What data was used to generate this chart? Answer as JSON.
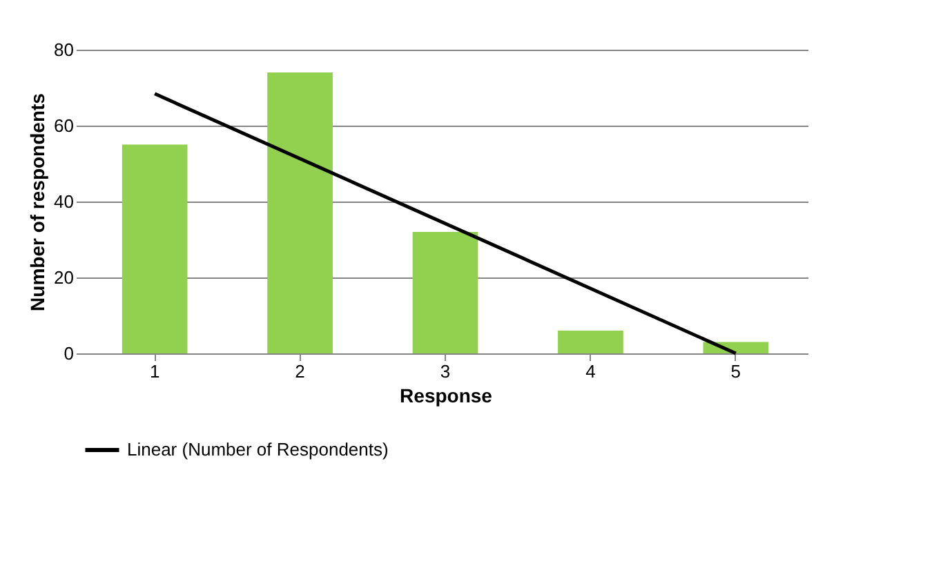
{
  "chart_data": {
    "type": "bar",
    "xlabel": "Response",
    "ylabel": "Number of respondents",
    "categories": [
      "1",
      "2",
      "3",
      "4",
      "5"
    ],
    "series": [
      {
        "color": "#92d050",
        "values": [
          55,
          74,
          32,
          6,
          3
        ]
      },
      {
        "type": "line",
        "name": "Linear (Number of Respondents)",
        "color": "#000000",
        "x": [
          "1",
          "5"
        ],
        "values": [
          68.4,
          0
        ]
      }
    ],
    "ylim": [
      0,
      80
    ],
    "yticks": [
      0,
      20,
      40,
      60,
      80
    ],
    "grid": "y",
    "legend": "bottom"
  }
}
